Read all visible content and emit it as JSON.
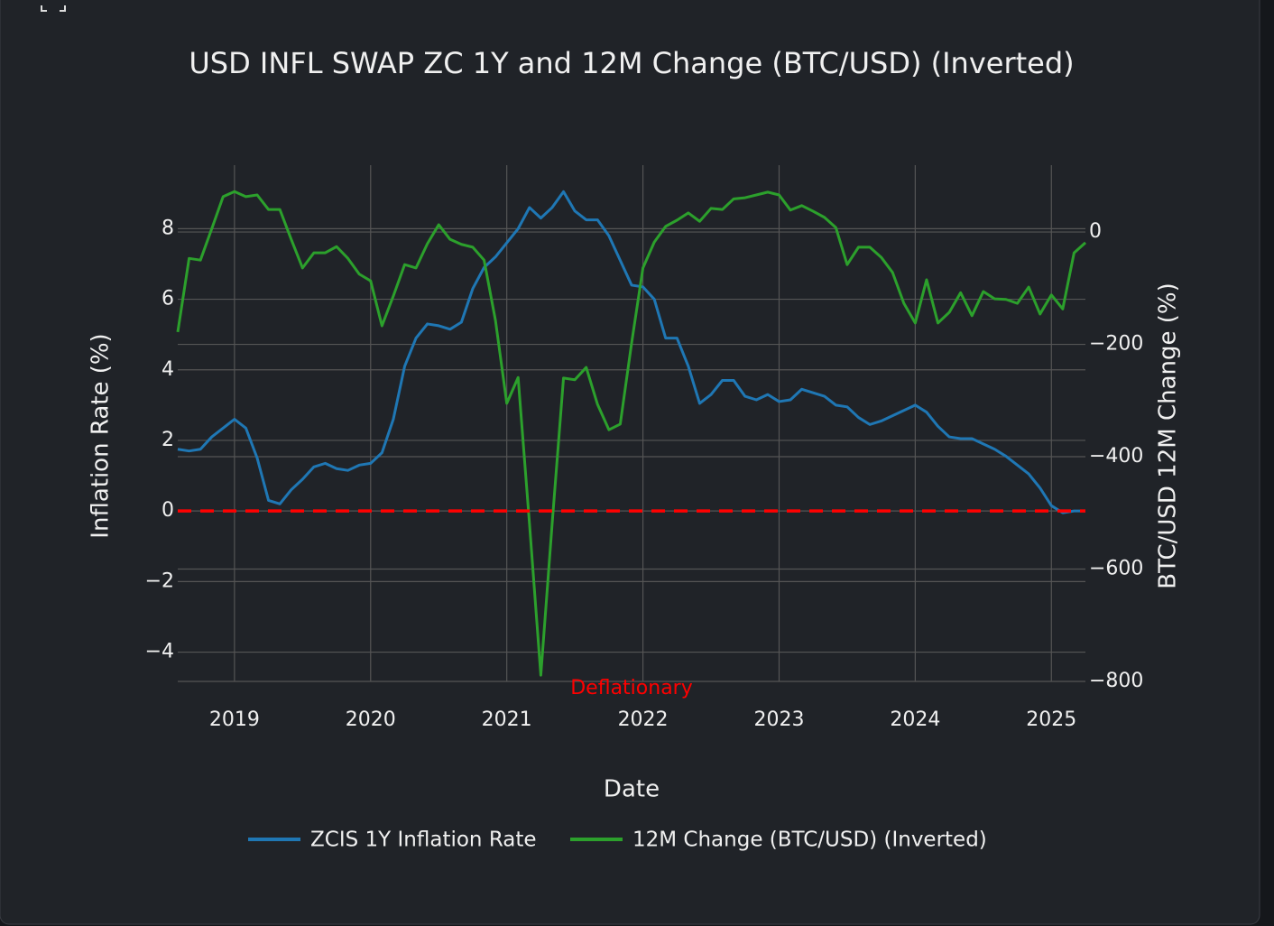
{
  "chart_data": {
    "type": "line",
    "title": "USD INFL SWAP ZC 1Y and 12M Change (BTC/USD) (Inverted)",
    "xlabel": "Date",
    "ylabel": "Inflation Rate (%)",
    "y2label": "BTC/USD 12M Change (%)",
    "x": [
      "2018-08",
      "2018-09",
      "2018-10",
      "2018-11",
      "2018-12",
      "2019-01",
      "2019-02",
      "2019-03",
      "2019-04",
      "2019-05",
      "2019-06",
      "2019-07",
      "2019-08",
      "2019-09",
      "2019-10",
      "2019-11",
      "2019-12",
      "2020-01",
      "2020-02",
      "2020-03",
      "2020-04",
      "2020-05",
      "2020-06",
      "2020-07",
      "2020-08",
      "2020-09",
      "2020-10",
      "2020-11",
      "2020-12",
      "2021-01",
      "2021-02",
      "2021-03",
      "2021-04",
      "2021-05",
      "2021-06",
      "2021-07",
      "2021-08",
      "2021-09",
      "2021-10",
      "2021-11",
      "2021-12",
      "2022-01",
      "2022-02",
      "2022-03",
      "2022-04",
      "2022-05",
      "2022-06",
      "2022-07",
      "2022-08",
      "2022-09",
      "2022-10",
      "2022-11",
      "2022-12",
      "2023-01",
      "2023-02",
      "2023-03",
      "2023-04",
      "2023-05",
      "2023-06",
      "2023-07",
      "2023-08",
      "2023-09",
      "2023-10",
      "2023-11",
      "2023-12",
      "2024-01",
      "2024-02",
      "2024-03",
      "2024-04",
      "2024-05",
      "2024-06",
      "2024-07",
      "2024-08",
      "2024-09",
      "2024-10",
      "2024-11",
      "2024-12",
      "2025-01",
      "2025-02",
      "2025-03",
      "2025-04"
    ],
    "series": [
      {
        "name": "ZCIS 1Y Inflation Rate",
        "color": "#1f77b4",
        "axis": "y",
        "values": [
          1.75,
          1.7,
          1.75,
          2.1,
          2.35,
          2.6,
          2.35,
          1.5,
          0.3,
          0.2,
          0.6,
          0.9,
          1.25,
          1.35,
          1.2,
          1.15,
          1.3,
          1.35,
          1.65,
          2.6,
          4.1,
          4.9,
          5.3,
          5.25,
          5.15,
          5.35,
          6.3,
          6.9,
          7.2,
          7.6,
          8.0,
          8.6,
          8.3,
          8.6,
          9.05,
          8.5,
          8.25,
          8.25,
          7.8,
          7.1,
          6.4,
          6.35,
          6.0,
          4.9,
          4.9,
          4.1,
          3.05,
          3.3,
          3.7,
          3.7,
          3.25,
          3.15,
          3.3,
          3.1,
          3.15,
          3.45,
          3.35,
          3.25,
          3.0,
          2.95,
          2.65,
          2.45,
          2.55,
          2.7,
          2.85,
          3.0,
          2.8,
          2.4,
          2.1,
          2.05,
          2.05,
          1.9,
          1.75,
          1.55,
          1.3,
          1.05,
          0.65,
          0.15,
          -0.05,
          0.0,
          0.0
        ]
      },
      {
        "name": "12M Change (BTC/USD) (Inverted)",
        "color": "#2ca02c",
        "axis": "y2",
        "values": [
          -178,
          -47,
          -50,
          6,
          63,
          72,
          63,
          66,
          40,
          40,
          -13,
          -64,
          -37,
          -37,
          -26,
          -47,
          -75,
          -87,
          -167,
          -114,
          -58,
          -64,
          -21,
          13,
          -13,
          -22,
          -27,
          -50,
          -157,
          -305,
          -259,
          -519,
          -789,
          -519,
          -260,
          -263,
          -241,
          -307,
          -352,
          -342,
          -198,
          -64,
          -18,
          10,
          21,
          34,
          19,
          42,
          40,
          59,
          61,
          66,
          71,
          66,
          39,
          47,
          37,
          26,
          8,
          -58,
          -27,
          -27,
          -45,
          -72,
          -127,
          -162,
          -85,
          -162,
          -143,
          -108,
          -149,
          -106,
          -119,
          -120,
          -127,
          -98,
          -146,
          -112,
          -137,
          -37,
          -19
        ]
      }
    ],
    "xlim": [
      "2018-08",
      "2025-04"
    ],
    "xticks": [
      {
        "value": "2019-01",
        "label": "2019"
      },
      {
        "value": "2020-01",
        "label": "2020"
      },
      {
        "value": "2021-01",
        "label": "2021"
      },
      {
        "value": "2022-01",
        "label": "2022"
      },
      {
        "value": "2023-01",
        "label": "2023"
      },
      {
        "value": "2024-01",
        "label": "2024"
      },
      {
        "value": "2025-01",
        "label": "2025"
      }
    ],
    "ylim": [
      -4.83,
      9.8
    ],
    "yticks": [
      {
        "value": -4,
        "label": "−4"
      },
      {
        "value": -2,
        "label": "−2"
      },
      0,
      2,
      4,
      6,
      8
    ],
    "y2lim": [
      -800,
      119
    ],
    "y2ticks": [
      {
        "value": -800,
        "label": "−800"
      },
      {
        "value": -600,
        "label": "−600"
      },
      {
        "value": -400,
        "label": "−400"
      },
      {
        "value": -200,
        "label": "−200"
      },
      0
    ],
    "grid": true,
    "hline": {
      "y": 0,
      "color": "#ff0000",
      "label": "Deflationary"
    },
    "legend": "bottom"
  }
}
